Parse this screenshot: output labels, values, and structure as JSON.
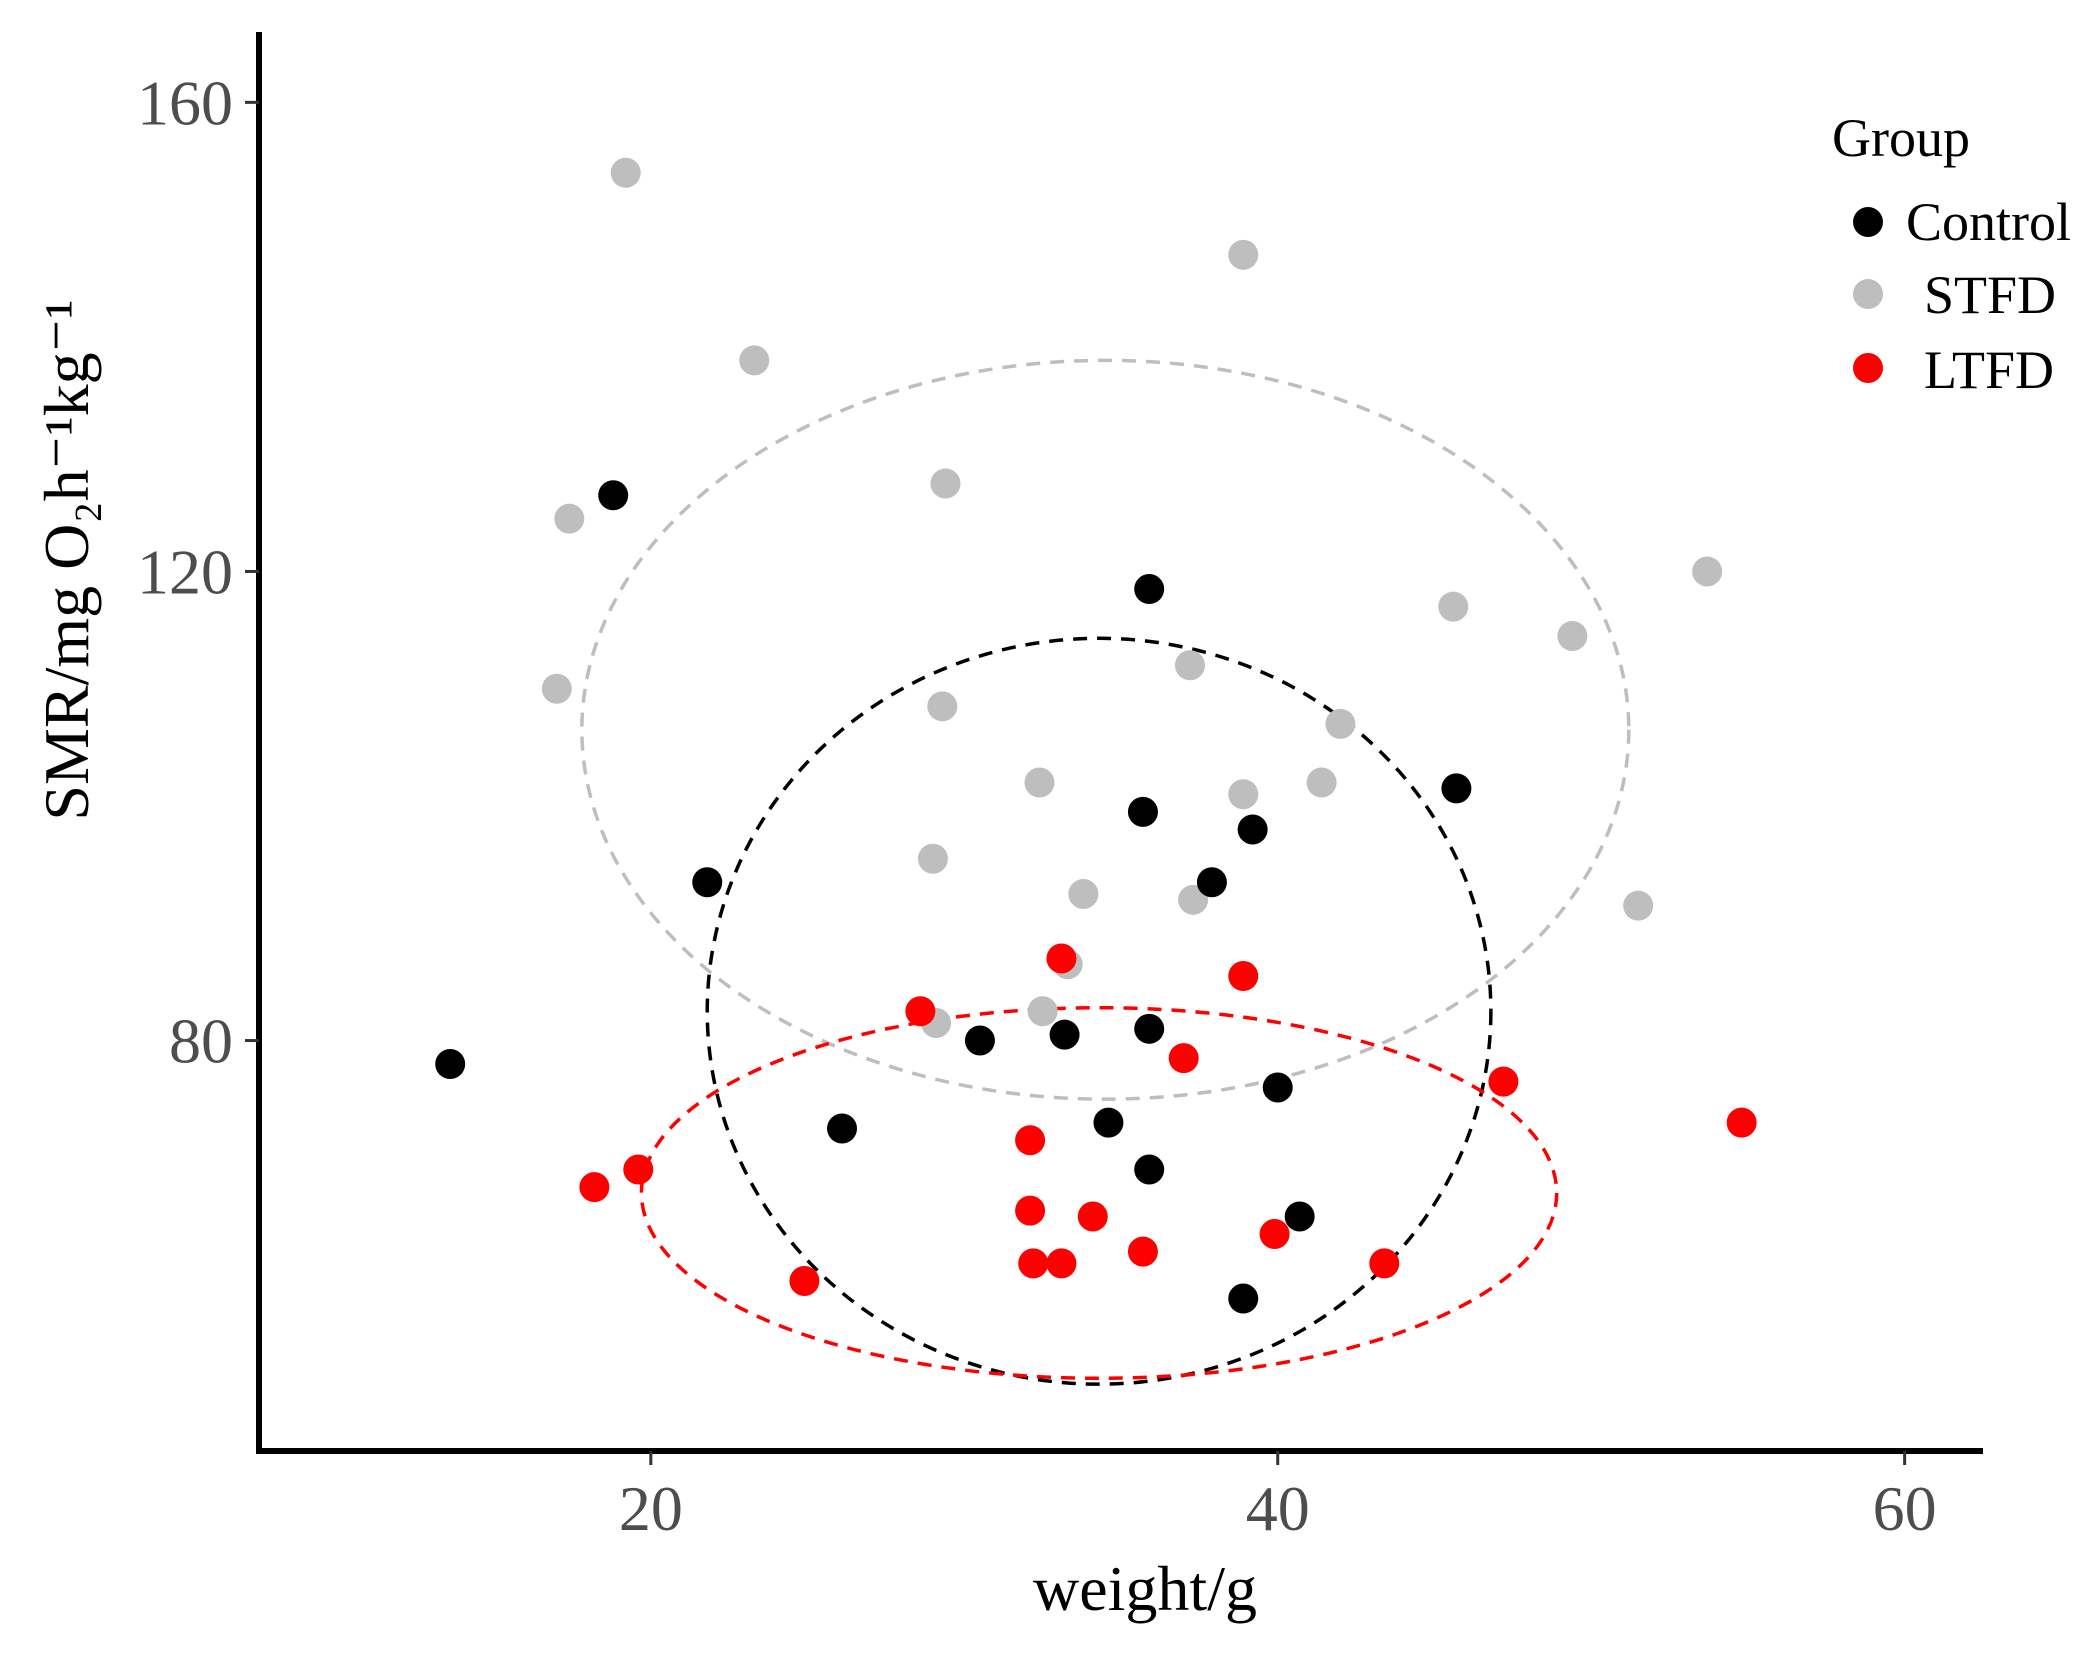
{
  "chart_data": {
    "type": "scatter",
    "title": "",
    "xlabel": "weight/g",
    "ylabel": "SMR/mg O₂h⁻¹kg⁻¹",
    "xlim": [
      7.5,
      62.5
    ],
    "ylim": [
      45,
      166
    ],
    "x_ticks": [
      20,
      40,
      60
    ],
    "y_ticks": [
      80,
      120,
      160
    ],
    "grid": false,
    "legend": {
      "title": "Group",
      "position": "top-right",
      "entries": [
        {
          "label": "Control",
          "color": "#000000"
        },
        {
          "label": "STFD",
          "color": "#bebebe"
        },
        {
          "label": "LTFD",
          "color": "#ff0000"
        }
      ]
    },
    "series": [
      {
        "name": "STFD",
        "color": "#bebebe",
        "points": [
          [
            19.2,
            154
          ],
          [
            17.4,
            124.5
          ],
          [
            17.0,
            110
          ],
          [
            23.3,
            138
          ],
          [
            29.4,
            127.5
          ],
          [
            29.3,
            108.5
          ],
          [
            29.0,
            95.5
          ],
          [
            29.1,
            81.5
          ],
          [
            32.4,
            102
          ],
          [
            33.3,
            86.5
          ],
          [
            32.5,
            82.5
          ],
          [
            33.8,
            92.5
          ],
          [
            37.2,
            112
          ],
          [
            37.3,
            92
          ],
          [
            38.9,
            101
          ],
          [
            38.9,
            147
          ],
          [
            41.4,
            102
          ],
          [
            42.0,
            107
          ],
          [
            45.6,
            117
          ],
          [
            49.4,
            114.5
          ],
          [
            51.5,
            91.5
          ],
          [
            53.7,
            120
          ]
        ]
      },
      {
        "name": "Control",
        "color": "#000000",
        "points": [
          [
            13.6,
            78
          ],
          [
            18.8,
            126.5
          ],
          [
            21.8,
            93.5
          ],
          [
            26.1,
            72.5
          ],
          [
            30.5,
            80
          ],
          [
            33.2,
            80.5
          ],
          [
            34.6,
            73
          ],
          [
            35.7,
            99.5
          ],
          [
            35.9,
            118.5
          ],
          [
            35.9,
            81
          ],
          [
            35.9,
            69
          ],
          [
            37.9,
            93.5
          ],
          [
            39.2,
            98
          ],
          [
            38.9,
            58
          ],
          [
            40.0,
            76
          ],
          [
            40.7,
            65
          ],
          [
            45.7,
            101.5
          ]
        ]
      },
      {
        "name": "LTFD",
        "color": "#ff0000",
        "points": [
          [
            18.2,
            67.5
          ],
          [
            19.6,
            69
          ],
          [
            24.9,
            59.5
          ],
          [
            28.6,
            82.5
          ],
          [
            32.1,
            71.5
          ],
          [
            32.1,
            65.5
          ],
          [
            32.2,
            61
          ],
          [
            33.1,
            61
          ],
          [
            33.1,
            87
          ],
          [
            34.1,
            65
          ],
          [
            35.7,
            62
          ],
          [
            37.0,
            78.5
          ],
          [
            38.9,
            85.5
          ],
          [
            39.9,
            63.5
          ],
          [
            43.4,
            61
          ],
          [
            47.2,
            76.5
          ],
          [
            54.8,
            73
          ]
        ]
      }
    ],
    "ellipses": [
      {
        "series": "STFD",
        "color": "#bebebe",
        "center": [
          34.5,
          106.5
        ],
        "semi_axes": [
          16.7,
          31.5
        ],
        "line": "dashed"
      },
      {
        "series": "Control",
        "color": "#000000",
        "center": [
          34.3,
          82.5
        ],
        "semi_axes": [
          12.5,
          31.8
        ],
        "line": "dashed"
      },
      {
        "series": "LTFD",
        "color": "#ff0000",
        "center": [
          34.3,
          67
        ],
        "semi_axes": [
          14.6,
          15.8
        ],
        "line": "dashed"
      }
    ]
  }
}
